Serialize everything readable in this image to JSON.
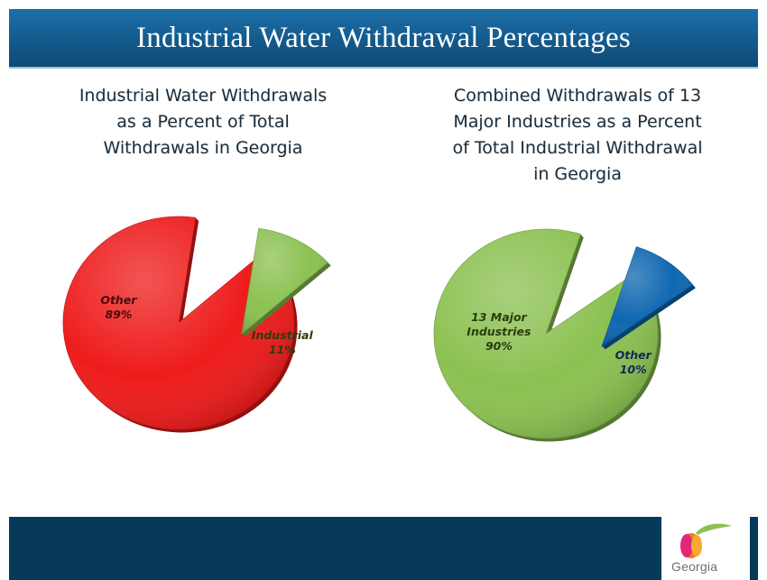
{
  "header": {
    "title": "Industrial Water Withdrawal Percentages"
  },
  "logo": {
    "text": "Georgia"
  },
  "colors": {
    "header_bg": "#135a8c",
    "footer_bg": "#073a5a",
    "red": "#ee1c1c",
    "green": "#8cc152",
    "blue": "#0f67b1"
  },
  "chart_data": [
    {
      "type": "pie",
      "title": "Industrial Water Withdrawals\nas a Percent of Total\nWithdrawals in Georgia",
      "slices": [
        {
          "name": "Other",
          "value": 89,
          "label": "89%",
          "color": "#ee1c1c",
          "exploded": false
        },
        {
          "name": "Industrial",
          "value": 11,
          "label": "11%",
          "color": "#8cc152",
          "exploded": true
        }
      ]
    },
    {
      "type": "pie",
      "title": "Combined Withdrawals of 13\nMajor Industries as a Percent\nof Total Industrial Withdrawal\nin Georgia",
      "slices": [
        {
          "name": "13 Major\nIndustries",
          "value": 90,
          "label": "90%",
          "color": "#8cc152",
          "exploded": false
        },
        {
          "name": "Other",
          "value": 10,
          "label": "10%",
          "color": "#0f67b1",
          "exploded": true
        }
      ]
    }
  ]
}
